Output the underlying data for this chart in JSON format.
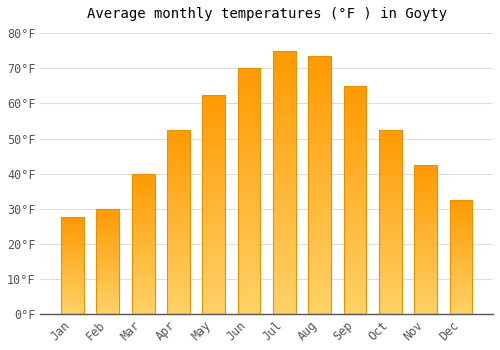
{
  "title": "Average monthly temperatures (°F ) in Goyty",
  "months": [
    "Jan",
    "Feb",
    "Mar",
    "Apr",
    "May",
    "Jun",
    "Jul",
    "Aug",
    "Sep",
    "Oct",
    "Nov",
    "Dec"
  ],
  "values": [
    27.5,
    30.0,
    40.0,
    52.5,
    62.5,
    70.0,
    75.0,
    73.5,
    65.0,
    52.5,
    42.5,
    32.5
  ],
  "bar_color_top": "#FFA500",
  "bar_color_bottom": "#FFD080",
  "bar_edge_color": "#E89000",
  "background_color": "#FFFFFF",
  "grid_color": "#DDDDDD",
  "ylim": [
    0,
    82
  ],
  "yticks": [
    0,
    10,
    20,
    30,
    40,
    50,
    60,
    70,
    80
  ],
  "title_fontsize": 10,
  "tick_fontsize": 8.5
}
